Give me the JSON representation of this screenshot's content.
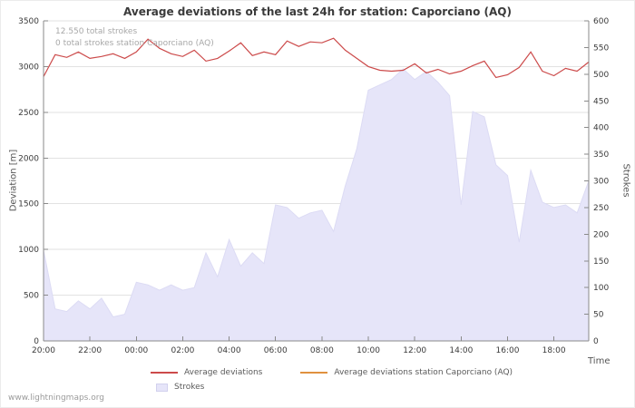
{
  "footer": "www.lightningmaps.org",
  "legend": [
    {
      "label": "Average deviations",
      "type": "line",
      "color": "#cc4a4a"
    },
    {
      "label": "Average deviations station Caporciano (AQ)",
      "type": "line",
      "color": "#e0913f"
    },
    {
      "label": "Strokes",
      "type": "area",
      "color": "#e6e5f9"
    }
  ],
  "chart_data": {
    "type": "line+area",
    "title": "Average deviations of the last 24h for station: Caporciano (AQ)",
    "annotations": [
      "12.550 total strokes",
      "0 total strokes station Caporciano (AQ)"
    ],
    "xlabel": "Time",
    "ylabel_left": "Deviation [m]",
    "ylabel_right": "Strokes",
    "grid": true,
    "legend_position": "bottom",
    "x_range": [
      0,
      23.5
    ],
    "ylim_left": [
      0,
      3500
    ],
    "ylim_right": [
      0,
      600
    ],
    "yticks_left": [
      0,
      500,
      1000,
      1500,
      2000,
      2500,
      3000,
      3500
    ],
    "yticks_right": [
      0,
      50,
      100,
      150,
      200,
      250,
      300,
      350,
      400,
      450,
      500,
      550,
      600
    ],
    "x_ticks": [
      "20:00",
      "22:00",
      "00:00",
      "02:00",
      "04:00",
      "06:00",
      "08:00",
      "10:00",
      "12:00",
      "14:00",
      "16:00",
      "18:00"
    ],
    "x_tick_positions": [
      0,
      2,
      4,
      6,
      8,
      10,
      12,
      14,
      16,
      18,
      20,
      22
    ],
    "x": [
      0,
      0.5,
      1,
      1.5,
      2,
      2.5,
      3,
      3.5,
      4,
      4.5,
      5,
      5.5,
      6,
      6.5,
      7,
      7.5,
      8,
      8.5,
      9,
      9.5,
      10,
      10.5,
      11,
      11.5,
      12,
      12.5,
      13,
      13.5,
      14,
      14.5,
      15,
      15.5,
      16,
      16.5,
      17,
      17.5,
      18,
      18.5,
      19,
      19.5,
      20,
      20.5,
      21,
      21.5,
      22,
      22.5,
      23,
      23.5
    ],
    "series": [
      {
        "name": "Strokes",
        "axis": "right",
        "type": "area",
        "color": "#e6e5f9",
        "edge_color": "#dcdbf4",
        "values": [
          170,
          60,
          55,
          75,
          60,
          80,
          45,
          50,
          110,
          105,
          95,
          105,
          95,
          100,
          165,
          120,
          190,
          140,
          165,
          145,
          255,
          250,
          230,
          240,
          245,
          205,
          290,
          360,
          470,
          480,
          490,
          510,
          490,
          505,
          485,
          460,
          255,
          430,
          420,
          330,
          310,
          185,
          320,
          260,
          250,
          255,
          240,
          300
        ]
      },
      {
        "name": "Average deviations",
        "axis": "left",
        "type": "line",
        "color": "#cc4a4a",
        "values": [
          2890,
          3130,
          3100,
          3160,
          3090,
          3110,
          3140,
          3090,
          3160,
          3300,
          3200,
          3140,
          3110,
          3180,
          3060,
          3090,
          3170,
          3260,
          3120,
          3160,
          3130,
          3280,
          3220,
          3270,
          3260,
          3310,
          3180,
          3090,
          3000,
          2960,
          2950,
          2960,
          3030,
          2930,
          2970,
          2920,
          2950,
          3010,
          3060,
          2880,
          2910,
          2990,
          3160,
          2950,
          2900,
          2980,
          2950,
          3050
        ]
      },
      {
        "name": "Average deviations station Caporciano (AQ)",
        "axis": "left",
        "type": "line",
        "color": "#e0913f",
        "values": []
      }
    ]
  }
}
